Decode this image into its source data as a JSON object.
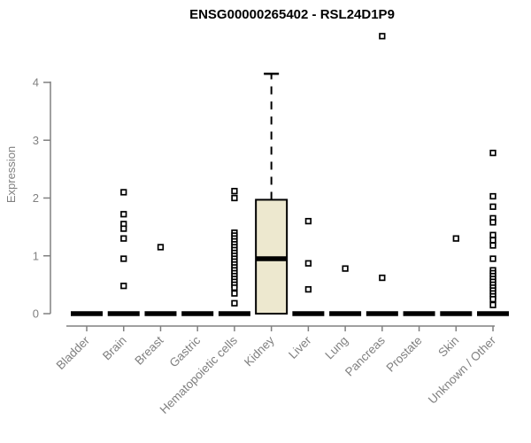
{
  "title": "ENSG00000265402 - RSL24D1P9",
  "chart_data": {
    "type": "boxplot",
    "title": "ENSG00000265402 - RSL24D1P9",
    "ylabel": "Expression",
    "xlabel": "",
    "ylim": [
      0,
      4.9
    ],
    "yticks": [
      0,
      1,
      2,
      3,
      4
    ],
    "grid": false,
    "legend": "none",
    "categories": [
      "Bladder",
      "Brain",
      "Breast",
      "Gastric",
      "Hematopoietic cells",
      "Kidney",
      "Liver",
      "Lung",
      "Pancreas",
      "Prostate",
      "Skin",
      "Unknown / Other"
    ],
    "boxes": [
      {
        "category": "Bladder",
        "q1": 0,
        "median": 0,
        "q3": 0,
        "whisker_low": 0,
        "whisker_high": 0,
        "outliers": []
      },
      {
        "category": "Brain",
        "q1": 0,
        "median": 0,
        "q3": 0,
        "whisker_low": 0,
        "whisker_high": 0,
        "outliers": [
          2.1,
          1.72,
          1.55,
          1.47,
          1.3,
          0.95,
          0.48
        ]
      },
      {
        "category": "Breast",
        "q1": 0,
        "median": 0,
        "q3": 0,
        "whisker_low": 0,
        "whisker_high": 0,
        "outliers": [
          1.15
        ]
      },
      {
        "category": "Gastric",
        "q1": 0,
        "median": 0,
        "q3": 0,
        "whisker_low": 0,
        "whisker_high": 0,
        "outliers": []
      },
      {
        "category": "Hematopoietic cells",
        "q1": 0,
        "median": 0,
        "q3": 0,
        "whisker_low": 0,
        "whisker_high": 0,
        "outliers": [
          2.12,
          2.0,
          1.4,
          1.35,
          1.3,
          1.25,
          1.2,
          1.15,
          1.1,
          1.05,
          1.0,
          0.95,
          0.9,
          0.85,
          0.8,
          0.75,
          0.7,
          0.65,
          0.6,
          0.55,
          0.5,
          0.45,
          0.35,
          0.18
        ]
      },
      {
        "category": "Kidney",
        "q1": 0,
        "median": 0.95,
        "q3": 1.97,
        "whisker_low": 0,
        "whisker_high": 4.15,
        "outliers": []
      },
      {
        "category": "Liver",
        "q1": 0,
        "median": 0,
        "q3": 0,
        "whisker_low": 0,
        "whisker_high": 0,
        "outliers": [
          1.6,
          0.87,
          0.42
        ]
      },
      {
        "category": "Lung",
        "q1": 0,
        "median": 0,
        "q3": 0,
        "whisker_low": 0,
        "whisker_high": 0,
        "outliers": [
          0.78
        ]
      },
      {
        "category": "Pancreas",
        "q1": 0,
        "median": 0,
        "q3": 0,
        "whisker_low": 0,
        "whisker_high": 0,
        "outliers": [
          4.8,
          0.62
        ]
      },
      {
        "category": "Prostate",
        "q1": 0,
        "median": 0,
        "q3": 0,
        "whisker_low": 0,
        "whisker_high": 0,
        "outliers": []
      },
      {
        "category": "Skin",
        "q1": 0,
        "median": 0,
        "q3": 0,
        "whisker_low": 0,
        "whisker_high": 0,
        "outliers": [
          1.3
        ]
      },
      {
        "category": "Unknown / Other",
        "q1": 0,
        "median": 0,
        "q3": 0,
        "whisker_low": 0,
        "whisker_high": 0,
        "outliers": [
          2.78,
          2.03,
          1.85,
          1.65,
          1.58,
          1.36,
          1.27,
          1.18,
          0.95,
          0.75,
          0.7,
          0.65,
          0.6,
          0.55,
          0.5,
          0.45,
          0.4,
          0.35,
          0.3,
          0.25,
          0.15
        ]
      }
    ],
    "colors": {
      "box_fill": "#EDE8CF",
      "box_stroke": "#000000",
      "median": "#000000",
      "whisker": "#000000",
      "point_stroke": "#000000",
      "point_fill": "#FFFFFF",
      "axis": "#808080",
      "title": "#000000"
    }
  }
}
